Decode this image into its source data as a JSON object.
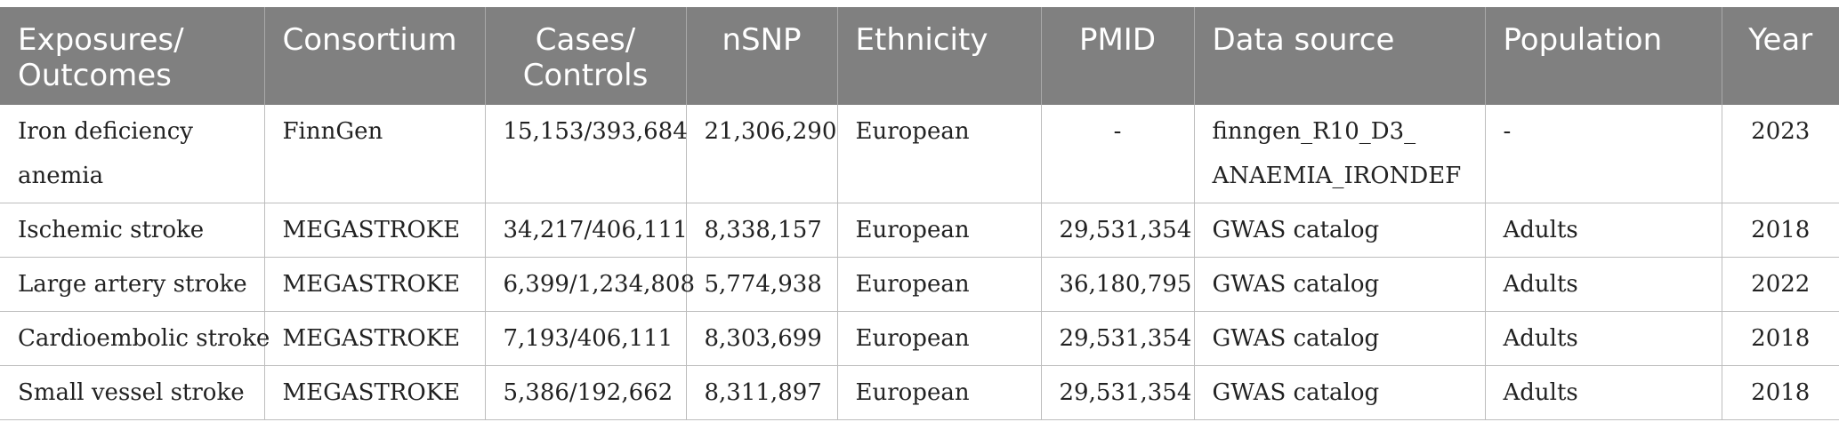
{
  "headers": [
    "Exposures/ Outcomes",
    "Consortium",
    "Cases/ Controls",
    "nSNP",
    "Ethnicity",
    "PMID",
    "Data source",
    "Population",
    "Year"
  ],
  "rows": [
    [
      "Iron deficiency anemia",
      "FinnGen",
      "15,153/393,684",
      "21,306,290",
      "European",
      "-",
      "finngen_R10_D3_ ANAEMIA_IRONDEF",
      "-",
      "2023"
    ],
    [
      "Ischemic stroke",
      "MEGASTROKE",
      "34,217/406,111",
      "8,338,157",
      "European",
      "29,531,354",
      "GWAS catalog",
      "Adults",
      "2018"
    ],
    [
      "Large artery stroke",
      "MEGASTROKE",
      "6,399/1,234,808",
      "5,774,938",
      "European",
      "36,180,795",
      "GWAS catalog",
      "Adults",
      "2022"
    ],
    [
      "Cardioembolic stroke",
      "MEGASTROKE",
      "7,193/406,111",
      "8,303,699",
      "European",
      "29,531,354",
      "GWAS catalog",
      "Adults",
      "2018"
    ],
    [
      "Small vessel stroke",
      "MEGASTROKE",
      "5,386/192,662",
      "8,311,897",
      "European",
      "29,531,354",
      "GWAS catalog",
      "Adults",
      "2018"
    ]
  ]
}
